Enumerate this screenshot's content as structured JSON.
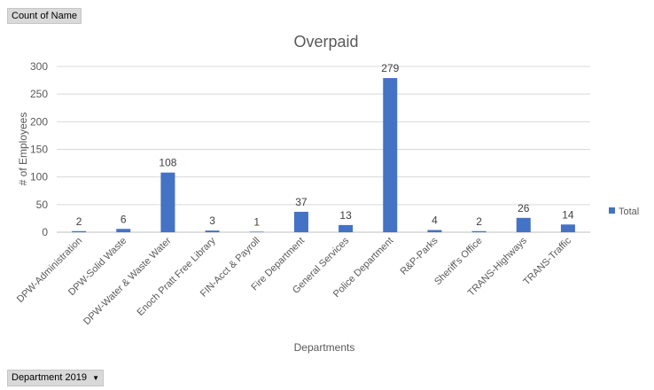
{
  "pivot": {
    "value_field": "Count of  Name",
    "row_field": "Department 2019",
    "row_field_icon": "dropdown-arrow-icon"
  },
  "chart_data": {
    "type": "bar",
    "title": "Overpaid",
    "xlabel": "Departments",
    "ylabel": "# of Employees",
    "ylim": [
      0,
      300
    ],
    "yticks": [
      0,
      50,
      100,
      150,
      200,
      250,
      300
    ],
    "grid": true,
    "legend_position": "right",
    "categories": [
      "DPW-Administration",
      "DPW-Solid Waste",
      "DPW-Water & Waste Water",
      "Enoch Pratt Free Library",
      "FIN-Acct & Payroll",
      "Fire Department",
      "General Services",
      "Police Department",
      "R&P-Parks",
      "Sheriff's Office",
      "TRANS-Highways",
      "TRANS-Traffic"
    ],
    "series": [
      {
        "name": "Total",
        "color": "#4472c4",
        "values": [
          2,
          6,
          108,
          3,
          1,
          37,
          13,
          279,
          4,
          2,
          26,
          14
        ]
      }
    ]
  }
}
